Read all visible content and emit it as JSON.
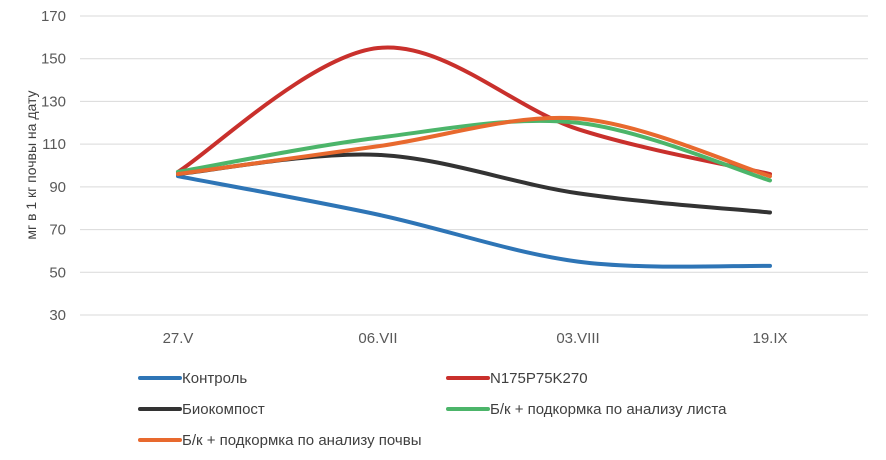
{
  "chart_data": {
    "type": "line",
    "title": "",
    "xlabel": "",
    "ylabel": "мг в 1 кг почвы на дату",
    "categories": [
      "27.V",
      "06.VII",
      "03.VIII",
      "19.IX"
    ],
    "ylim": [
      30,
      170
    ],
    "yticks": [
      30,
      50,
      70,
      90,
      110,
      130,
      150,
      170
    ],
    "grid": "horizontal",
    "smooth": true,
    "legend_position": "bottom",
    "series": [
      {
        "name": "Контроль",
        "color": "#2E75B6",
        "values": [
          95,
          77,
          55,
          53
        ]
      },
      {
        "name": "N175P75K270",
        "color": "#C9302C",
        "values": [
          97,
          155,
          117,
          96
        ]
      },
      {
        "name": "Биокомпост",
        "color": "#333333",
        "values": [
          96,
          105,
          87,
          78
        ]
      },
      {
        "name": "Б/к + подкормка по анализу листа",
        "color": "#4CB56A",
        "values": [
          97,
          113,
          120,
          93
        ]
      },
      {
        "name": "Б/к + подкормка по анализу почвы",
        "color": "#E8692E",
        "values": [
          96,
          109,
          122,
          95
        ]
      }
    ]
  }
}
